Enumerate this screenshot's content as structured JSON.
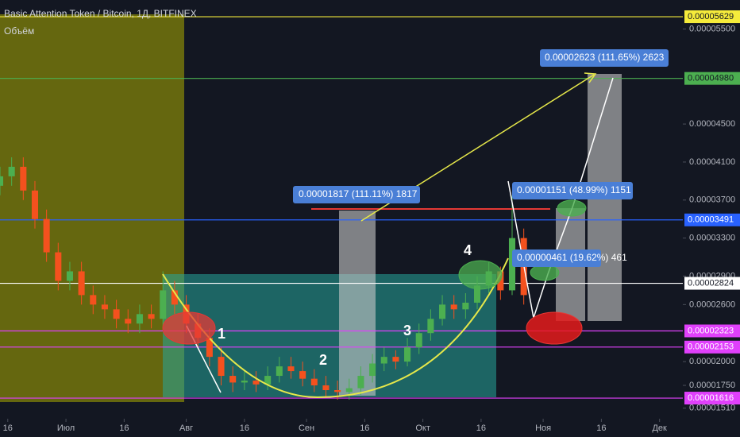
{
  "chart_data": {
    "type": "candlestick",
    "title": "Basic Attention Token / Bitcoin, 1Д, BITFINEX",
    "subtitle": "Объём",
    "up_color": "#4caf50",
    "down_color": "#f4511e",
    "x": [
      -2,
      1,
      4,
      7,
      10,
      13,
      16,
      19,
      22,
      25,
      28,
      31,
      34,
      37,
      40,
      43,
      46,
      49,
      52,
      55,
      58,
      61,
      64,
      67,
      70,
      73,
      76,
      79,
      82,
      85,
      88,
      91,
      94,
      97,
      100,
      103,
      106,
      109,
      112,
      115,
      118,
      121,
      124,
      127,
      130,
      133
    ],
    "open": [
      3.85e-05,
      3.95e-05,
      4.05e-05,
      3.8e-05,
      3.5e-05,
      3.15e-05,
      2.85e-05,
      2.95e-05,
      2.7e-05,
      2.6e-05,
      2.55e-05,
      2.45e-05,
      2.4e-05,
      2.5e-05,
      2.45e-05,
      2.75e-05,
      2.6e-05,
      2.4e-05,
      2.25e-05,
      2.05e-05,
      1.85e-05,
      1.78e-05,
      1.8e-05,
      1.76e-05,
      1.85e-05,
      1.95e-05,
      1.9e-05,
      1.82e-05,
      1.75e-05,
      1.7e-05,
      1.68e-05,
      1.72e-05,
      1.85e-05,
      1.98e-05,
      2.05e-05,
      2e-05,
      2.15e-05,
      2.3e-05,
      2.45e-05,
      2.6e-05,
      2.55e-05,
      2.62e-05,
      2.8e-05,
      2.95e-05,
      2.75e-05,
      3.3e-05
    ],
    "high": [
      4.05e-05,
      4.15e-05,
      4.15e-05,
      3.9e-05,
      3.6e-05,
      3.25e-05,
      3.05e-05,
      3.05e-05,
      2.8e-05,
      2.7e-05,
      2.65e-05,
      2.55e-05,
      2.6e-05,
      2.6e-05,
      2.95e-05,
      2.85e-05,
      2.7e-05,
      2.5e-05,
      2.35e-05,
      2.15e-05,
      1.95e-05,
      1.9e-05,
      1.9e-05,
      1.95e-05,
      2.05e-05,
      2.05e-05,
      2e-05,
      1.92e-05,
      1.85e-05,
      1.8e-05,
      1.82e-05,
      1.95e-05,
      2.08e-05,
      2.15e-05,
      2.12e-05,
      2.25e-05,
      2.4e-05,
      2.55e-05,
      2.7e-05,
      2.7e-05,
      2.72e-05,
      2.9e-05,
      3.05e-05,
      3e-05,
      3.75e-05,
      3.4e-05
    ],
    "low": [
      3.75e-05,
      3.85e-05,
      3.7e-05,
      3.4e-05,
      3.05e-05,
      2.75e-05,
      2.75e-05,
      2.6e-05,
      2.5e-05,
      2.45e-05,
      2.35e-05,
      2.3e-05,
      2.3e-05,
      2.35e-05,
      2.35e-05,
      2.5e-05,
      2.3e-05,
      2.15e-05,
      1.95e-05,
      1.75e-05,
      1.68e-05,
      1.7e-05,
      1.68e-05,
      1.7e-05,
      1.78e-05,
      1.82e-05,
      1.74e-05,
      1.68e-05,
      1.63e-05,
      1.6e-05,
      1.6e-05,
      1.65e-05,
      1.78e-05,
      1.9e-05,
      1.92e-05,
      1.95e-05,
      2.08e-05,
      2.22e-05,
      2.38e-05,
      2.45e-05,
      2.45e-05,
      2.55e-05,
      2.72e-05,
      2.65e-05,
      2.7e-05,
      2.6e-05
    ],
    "close": [
      3.95e-05,
      4.05e-05,
      3.8e-05,
      3.5e-05,
      3.15e-05,
      2.85e-05,
      2.95e-05,
      2.7e-05,
      2.6e-05,
      2.55e-05,
      2.45e-05,
      2.4e-05,
      2.5e-05,
      2.45e-05,
      2.75e-05,
      2.6e-05,
      2.4e-05,
      2.25e-05,
      2.05e-05,
      1.85e-05,
      1.78e-05,
      1.8e-05,
      1.76e-05,
      1.85e-05,
      1.95e-05,
      1.9e-05,
      1.82e-05,
      1.75e-05,
      1.7e-05,
      1.68e-05,
      1.72e-05,
      1.85e-05,
      1.98e-05,
      2.05e-05,
      2e-05,
      2.15e-05,
      2.3e-05,
      2.45e-05,
      2.6e-05,
      2.55e-05,
      2.62e-05,
      2.8e-05,
      2.95e-05,
      2.75e-05,
      3.3e-05,
      2.7e-05
    ],
    "xlim": [
      -2,
      174
    ],
    "xticks": [
      {
        "value": 0,
        "label": "16"
      },
      {
        "value": 15,
        "label": "Июл"
      },
      {
        "value": 30,
        "label": "16"
      },
      {
        "value": 46,
        "label": "Авг"
      },
      {
        "value": 61,
        "label": "16"
      },
      {
        "value": 77,
        "label": "Сен"
      },
      {
        "value": 92,
        "label": "16"
      },
      {
        "value": 107,
        "label": "Окт"
      },
      {
        "value": 122,
        "label": "16"
      },
      {
        "value": 138,
        "label": "Ноя"
      },
      {
        "value": 153,
        "label": "16"
      },
      {
        "value": 168,
        "label": "Дек"
      }
    ],
    "ylim": [
      1.399e-05,
      5.805e-05
    ],
    "yticks": [
      {
        "value": 5.5e-05,
        "label": "0.00005500"
      },
      {
        "value": 4.5e-05,
        "label": "0.00004500"
      },
      {
        "value": 4.1e-05,
        "label": "0.00004100"
      },
      {
        "value": 3.7e-05,
        "label": "0.00003700"
      },
      {
        "value": 3.3e-05,
        "label": "0.00003300"
      },
      {
        "value": 2.9e-05,
        "label": "0.00002900"
      },
      {
        "value": 2.6e-05,
        "label": "0.00002600"
      },
      {
        "value": 2e-05,
        "label": "0.00002000"
      },
      {
        "value": 1.75e-05,
        "label": "0.00001750"
      },
      {
        "value": 1.51e-05,
        "label": "0.00001510"
      }
    ],
    "levels": [
      {
        "value": 5.629e-05,
        "color": "#f5eb3b",
        "text_color": "#131722"
      },
      {
        "value": 4.98e-05,
        "label": "0.00004980",
        "color": "#4caf50",
        "text_color": "#131722"
      },
      {
        "value": 3.491e-05,
        "color": "#2962ff",
        "text_color": "#ffffff"
      },
      {
        "value": 2.824e-05,
        "color": "#ffffff",
        "text_color": "#131722"
      },
      {
        "value": 2.323e-05,
        "color": "#e040fb",
        "text_color": "#ffffff"
      },
      {
        "value": 2.153e-05,
        "color": "#e040fb",
        "text_color": "#ffffff"
      },
      {
        "value": 1.616e-05,
        "color": "#e040fb",
        "text_color": "#ffffff"
      }
    ],
    "annotations": [
      {
        "text": "0.00001817 (111.11%) 1817"
      },
      {
        "text": "0.00001151 (48.99%) 1151"
      },
      {
        "text": "0.00000461 (19.62%) 461"
      },
      {
        "text": "0.00002623 (111.65%) 2623"
      },
      {
        "text": "1"
      },
      {
        "text": "2"
      },
      {
        "text": "3"
      },
      {
        "text": "4"
      }
    ]
  }
}
